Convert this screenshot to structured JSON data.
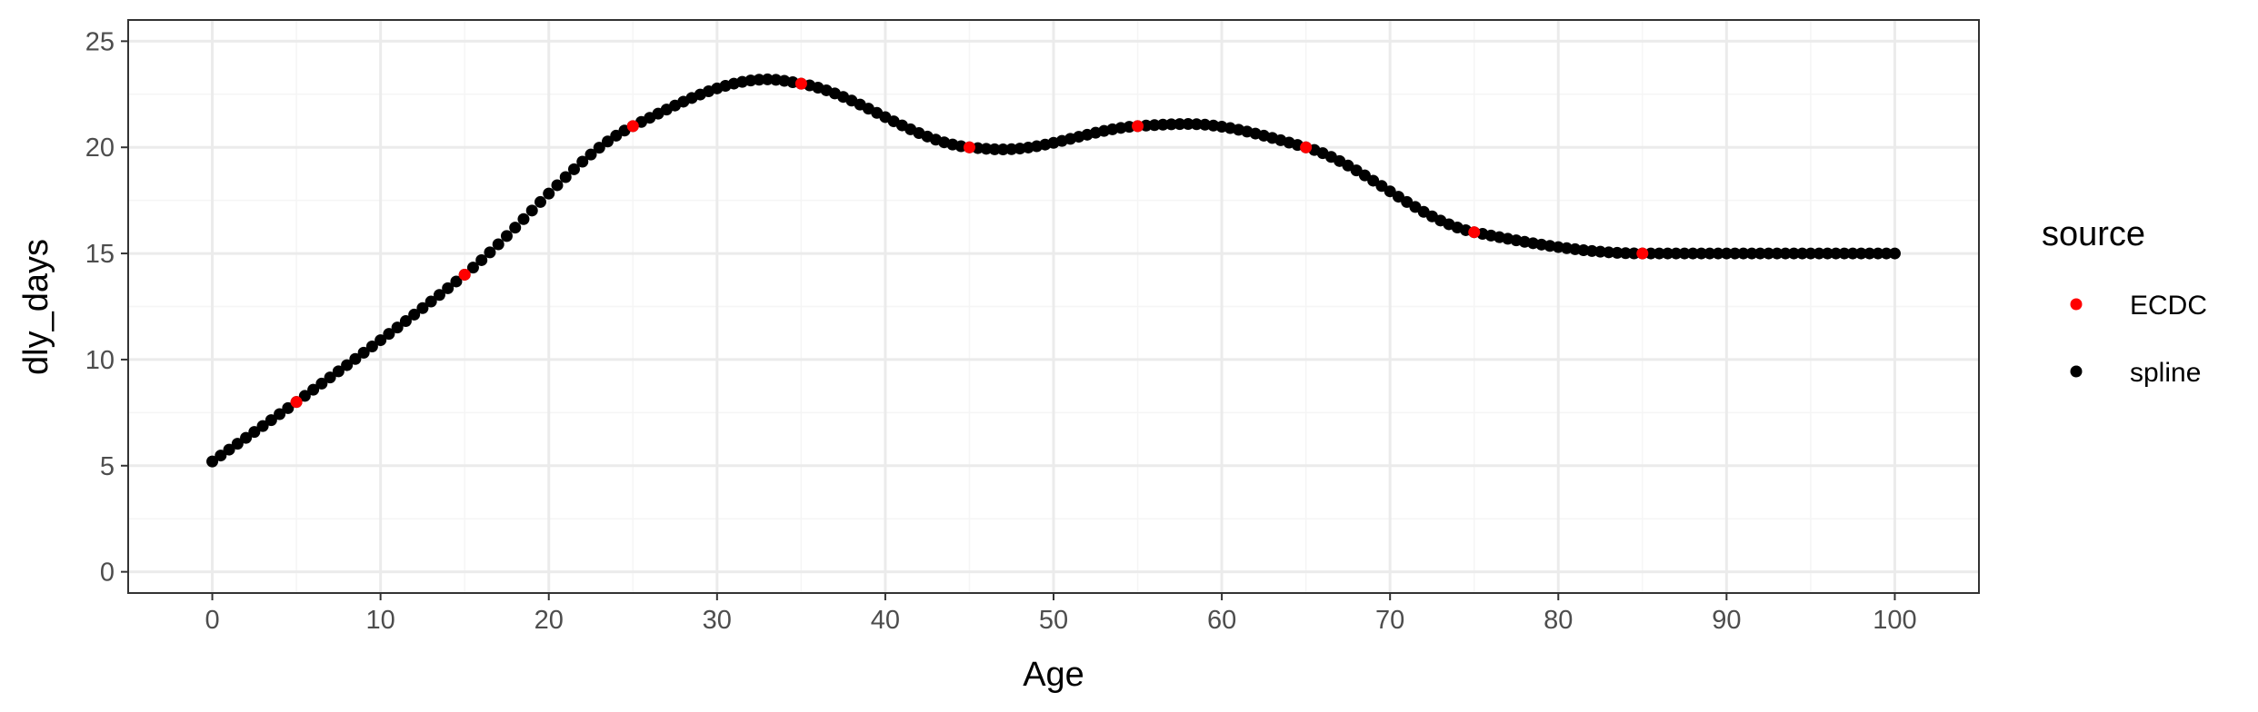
{
  "chart_data": {
    "type": "scatter",
    "title": "",
    "xlabel": "Age",
    "ylabel": "dly_days",
    "xlim": [
      -5,
      105
    ],
    "ylim": [
      -1,
      26
    ],
    "x_ticks": [
      0,
      10,
      20,
      30,
      40,
      50,
      60,
      70,
      80,
      90,
      100
    ],
    "y_ticks": [
      0,
      5,
      10,
      15,
      20,
      25
    ],
    "grid": true,
    "legend": {
      "title": "source",
      "placement": "right",
      "entries": [
        "ECDC",
        "spline"
      ]
    },
    "colors": {
      "ECDC": "#ff0000",
      "spline": "#000000",
      "panel_border": "#333333",
      "grid_major": "#ebebeb",
      "grid_minor": "#f5f5f5"
    },
    "series": [
      {
        "name": "spline",
        "x": [
          0,
          5,
          15,
          25,
          33,
          35,
          45,
          47,
          55,
          58,
          65,
          75,
          85,
          100
        ],
        "values": [
          5.2,
          8,
          14,
          21,
          23.2,
          23,
          20,
          19.9,
          21,
          21.1,
          20,
          16,
          15,
          15
        ],
        "spacing": 0.5
      },
      {
        "name": "ECDC",
        "x": [
          5,
          15,
          25,
          35,
          45,
          55,
          65,
          75,
          85
        ],
        "values": [
          8,
          14,
          21,
          23,
          20,
          21,
          20,
          16,
          15
        ]
      }
    ]
  }
}
